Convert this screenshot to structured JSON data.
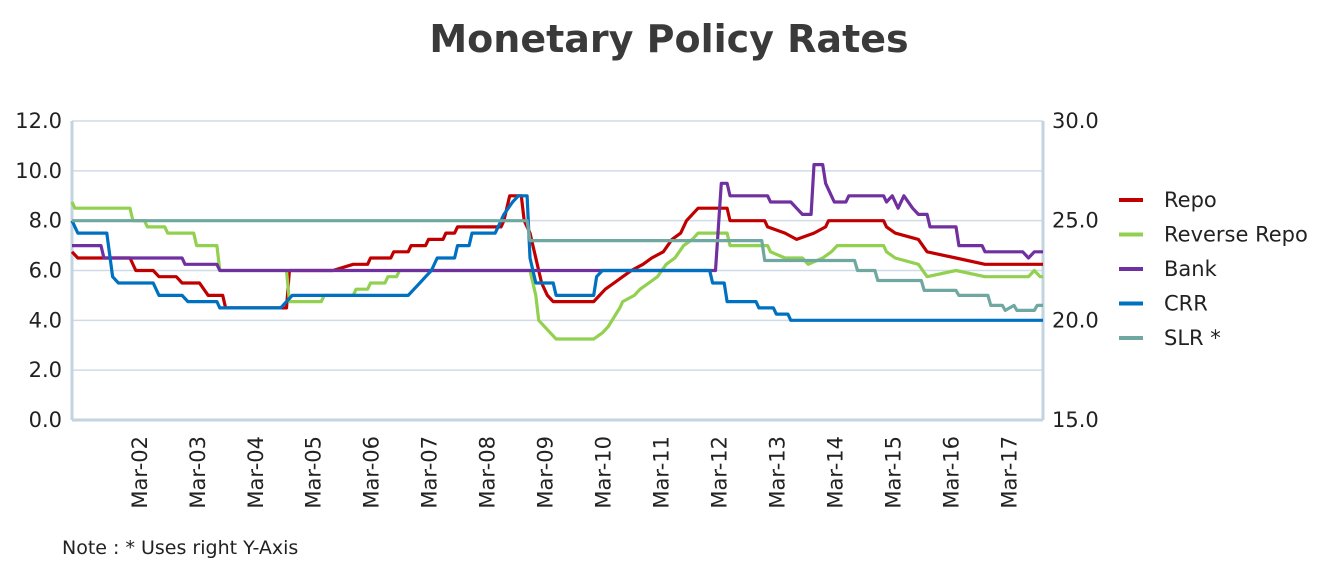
{
  "chart_data": {
    "type": "line",
    "title": "Monetary Policy Rates",
    "note": "Note : * Uses right Y-Axis",
    "x_range": [
      2001.0,
      2017.75
    ],
    "x_ticks": [
      {
        "label": "Mar-02",
        "x": 2002.17
      },
      {
        "label": "Mar-03",
        "x": 2003.17
      },
      {
        "label": "Mar-04",
        "x": 2004.17
      },
      {
        "label": "Mar-05",
        "x": 2005.17
      },
      {
        "label": "Mar-06",
        "x": 2006.17
      },
      {
        "label": "Mar-07",
        "x": 2007.17
      },
      {
        "label": "Mar-08",
        "x": 2008.17
      },
      {
        "label": "Mar-09",
        "x": 2009.17
      },
      {
        "label": "Mar-10",
        "x": 2010.17
      },
      {
        "label": "Mar-11",
        "x": 2011.17
      },
      {
        "label": "Mar-12",
        "x": 2012.17
      },
      {
        "label": "Mar-13",
        "x": 2013.17
      },
      {
        "label": "Mar-14",
        "x": 2014.17
      },
      {
        "label": "Mar-15",
        "x": 2015.17
      },
      {
        "label": "Mar-16",
        "x": 2016.17
      },
      {
        "label": "Mar-17",
        "x": 2017.17
      }
    ],
    "y_left": {
      "ylim": [
        0,
        12
      ],
      "ticks": [
        0,
        2,
        4,
        6,
        8,
        10,
        12
      ],
      "tick_labels": [
        "0.0",
        "2.0",
        "4.0",
        "6.0",
        "8.0",
        "10.0",
        "12.0"
      ]
    },
    "y_right": {
      "ylim": [
        15,
        30
      ],
      "ticks": [
        15,
        20,
        25,
        30
      ],
      "tick_labels": [
        "15.0",
        "20.0",
        "25.0",
        "30.0"
      ]
    },
    "legend_position": "right",
    "series": [
      {
        "name": "Repo",
        "color": "#c00000",
        "axis": "left",
        "points": [
          [
            2001.0,
            6.75
          ],
          [
            2001.1,
            6.5
          ],
          [
            2001.5,
            6.5
          ],
          [
            2002.0,
            6.5
          ],
          [
            2002.1,
            6.0
          ],
          [
            2002.4,
            6.0
          ],
          [
            2002.5,
            5.75
          ],
          [
            2002.8,
            5.75
          ],
          [
            2002.9,
            5.5
          ],
          [
            2003.2,
            5.5
          ],
          [
            2003.35,
            5.0
          ],
          [
            2003.6,
            5.0
          ],
          [
            2003.65,
            4.5
          ],
          [
            2004.7,
            4.5
          ],
          [
            2004.75,
            6.0
          ],
          [
            2005.5,
            6.0
          ],
          [
            2005.85,
            6.25
          ],
          [
            2006.1,
            6.25
          ],
          [
            2006.15,
            6.5
          ],
          [
            2006.5,
            6.5
          ],
          [
            2006.55,
            6.75
          ],
          [
            2006.8,
            6.75
          ],
          [
            2006.85,
            7.0
          ],
          [
            2007.1,
            7.0
          ],
          [
            2007.15,
            7.25
          ],
          [
            2007.4,
            7.25
          ],
          [
            2007.45,
            7.5
          ],
          [
            2007.6,
            7.5
          ],
          [
            2007.65,
            7.75
          ],
          [
            2008.4,
            7.75
          ],
          [
            2008.45,
            8.0
          ],
          [
            2008.5,
            8.5
          ],
          [
            2008.55,
            9.0
          ],
          [
            2008.75,
            9.0
          ],
          [
            2008.8,
            8.0
          ],
          [
            2008.9,
            7.5
          ],
          [
            2009.0,
            6.5
          ],
          [
            2009.1,
            5.5
          ],
          [
            2009.2,
            5.0
          ],
          [
            2009.3,
            4.75
          ],
          [
            2010.0,
            4.75
          ],
          [
            2010.1,
            5.0
          ],
          [
            2010.2,
            5.25
          ],
          [
            2010.35,
            5.5
          ],
          [
            2010.5,
            5.75
          ],
          [
            2010.65,
            6.0
          ],
          [
            2010.85,
            6.25
          ],
          [
            2011.0,
            6.5
          ],
          [
            2011.2,
            6.75
          ],
          [
            2011.35,
            7.25
          ],
          [
            2011.5,
            7.5
          ],
          [
            2011.6,
            8.0
          ],
          [
            2011.7,
            8.25
          ],
          [
            2011.8,
            8.5
          ],
          [
            2012.3,
            8.5
          ],
          [
            2012.35,
            8.0
          ],
          [
            2012.95,
            8.0
          ],
          [
            2013.0,
            7.75
          ],
          [
            2013.3,
            7.5
          ],
          [
            2013.5,
            7.25
          ],
          [
            2013.8,
            7.5
          ],
          [
            2014.0,
            7.75
          ],
          [
            2014.05,
            8.0
          ],
          [
            2015.0,
            8.0
          ],
          [
            2015.05,
            7.75
          ],
          [
            2015.2,
            7.5
          ],
          [
            2015.6,
            7.25
          ],
          [
            2015.75,
            6.75
          ],
          [
            2016.25,
            6.5
          ],
          [
            2016.75,
            6.25
          ],
          [
            2017.75,
            6.25
          ]
        ]
      },
      {
        "name": "Reverse Repo",
        "color": "#92d050",
        "axis": "left",
        "points": [
          [
            2001.0,
            8.75
          ],
          [
            2001.05,
            8.5
          ],
          [
            2002.0,
            8.5
          ],
          [
            2002.05,
            8.0
          ],
          [
            2002.25,
            8.0
          ],
          [
            2002.3,
            7.75
          ],
          [
            2002.6,
            7.75
          ],
          [
            2002.65,
            7.5
          ],
          [
            2003.1,
            7.5
          ],
          [
            2003.15,
            7.0
          ],
          [
            2003.5,
            7.0
          ],
          [
            2003.55,
            6.0
          ],
          [
            2004.7,
            6.0
          ],
          [
            2004.75,
            4.75
          ],
          [
            2005.3,
            4.75
          ],
          [
            2005.35,
            5.0
          ],
          [
            2005.85,
            5.0
          ],
          [
            2005.9,
            5.25
          ],
          [
            2006.1,
            5.25
          ],
          [
            2006.15,
            5.5
          ],
          [
            2006.4,
            5.5
          ],
          [
            2006.45,
            5.75
          ],
          [
            2006.6,
            5.75
          ],
          [
            2006.65,
            6.0
          ],
          [
            2008.6,
            6.0
          ],
          [
            2008.9,
            6.0
          ],
          [
            2009.0,
            5.0
          ],
          [
            2009.05,
            4.0
          ],
          [
            2009.25,
            3.5
          ],
          [
            2009.35,
            3.25
          ],
          [
            2010.0,
            3.25
          ],
          [
            2010.15,
            3.5
          ],
          [
            2010.25,
            3.75
          ],
          [
            2010.45,
            4.5
          ],
          [
            2010.5,
            4.75
          ],
          [
            2010.7,
            5.0
          ],
          [
            2010.8,
            5.25
          ],
          [
            2010.95,
            5.5
          ],
          [
            2011.1,
            5.75
          ],
          [
            2011.25,
            6.25
          ],
          [
            2011.4,
            6.5
          ],
          [
            2011.55,
            7.0
          ],
          [
            2011.7,
            7.25
          ],
          [
            2011.8,
            7.5
          ],
          [
            2012.3,
            7.5
          ],
          [
            2012.35,
            7.0
          ],
          [
            2013.0,
            7.0
          ],
          [
            2013.05,
            6.75
          ],
          [
            2013.3,
            6.5
          ],
          [
            2013.6,
            6.5
          ],
          [
            2013.7,
            6.25
          ],
          [
            2013.95,
            6.5
          ],
          [
            2014.1,
            6.75
          ],
          [
            2014.2,
            7.0
          ],
          [
            2015.0,
            7.0
          ],
          [
            2015.05,
            6.75
          ],
          [
            2015.2,
            6.5
          ],
          [
            2015.6,
            6.25
          ],
          [
            2015.75,
            5.75
          ],
          [
            2016.25,
            6.0
          ],
          [
            2016.75,
            5.75
          ],
          [
            2017.5,
            5.75
          ],
          [
            2017.6,
            6.0
          ],
          [
            2017.7,
            5.75
          ],
          [
            2017.75,
            5.75
          ]
        ]
      },
      {
        "name": "Bank",
        "color": "#7030a0",
        "axis": "left",
        "points": [
          [
            2001.0,
            7.0
          ],
          [
            2001.5,
            7.0
          ],
          [
            2001.55,
            6.5
          ],
          [
            2002.9,
            6.5
          ],
          [
            2002.95,
            6.25
          ],
          [
            2003.5,
            6.25
          ],
          [
            2003.55,
            6.0
          ],
          [
            2012.1,
            6.0
          ],
          [
            2012.2,
            9.5
          ],
          [
            2012.3,
            9.5
          ],
          [
            2012.35,
            9.0
          ],
          [
            2013.0,
            9.0
          ],
          [
            2013.05,
            8.75
          ],
          [
            2013.4,
            8.75
          ],
          [
            2013.5,
            8.5
          ],
          [
            2013.6,
            8.25
          ],
          [
            2013.75,
            8.25
          ],
          [
            2013.8,
            10.25
          ],
          [
            2013.95,
            10.25
          ],
          [
            2014.0,
            9.5
          ],
          [
            2014.1,
            9.0
          ],
          [
            2014.15,
            8.75
          ],
          [
            2014.35,
            8.75
          ],
          [
            2014.4,
            9.0
          ],
          [
            2015.0,
            9.0
          ],
          [
            2015.05,
            8.75
          ],
          [
            2015.15,
            9.0
          ],
          [
            2015.25,
            8.5
          ],
          [
            2015.35,
            9.0
          ],
          [
            2015.5,
            8.5
          ],
          [
            2015.6,
            8.25
          ],
          [
            2015.75,
            8.25
          ],
          [
            2015.8,
            7.75
          ],
          [
            2016.25,
            7.75
          ],
          [
            2016.3,
            7.0
          ],
          [
            2016.7,
            7.0
          ],
          [
            2016.75,
            6.75
          ],
          [
            2017.4,
            6.75
          ],
          [
            2017.5,
            6.5
          ],
          [
            2017.6,
            6.75
          ],
          [
            2017.75,
            6.75
          ]
        ]
      },
      {
        "name": "CRR",
        "color": "#0070c0",
        "axis": "left",
        "points": [
          [
            2001.0,
            8.0
          ],
          [
            2001.1,
            7.5
          ],
          [
            2001.6,
            7.5
          ],
          [
            2001.7,
            5.75
          ],
          [
            2001.8,
            5.5
          ],
          [
            2002.4,
            5.5
          ],
          [
            2002.5,
            5.0
          ],
          [
            2002.9,
            5.0
          ],
          [
            2003.0,
            4.75
          ],
          [
            2003.5,
            4.75
          ],
          [
            2003.55,
            4.5
          ],
          [
            2004.6,
            4.5
          ],
          [
            2004.7,
            4.75
          ],
          [
            2004.8,
            5.0
          ],
          [
            2006.8,
            5.0
          ],
          [
            2006.9,
            5.25
          ],
          [
            2007.0,
            5.5
          ],
          [
            2007.1,
            5.75
          ],
          [
            2007.2,
            6.0
          ],
          [
            2007.3,
            6.5
          ],
          [
            2007.6,
            6.5
          ],
          [
            2007.65,
            7.0
          ],
          [
            2007.85,
            7.0
          ],
          [
            2007.9,
            7.5
          ],
          [
            2008.3,
            7.5
          ],
          [
            2008.35,
            7.75
          ],
          [
            2008.45,
            8.25
          ],
          [
            2008.6,
            8.75
          ],
          [
            2008.7,
            9.0
          ],
          [
            2008.85,
            9.0
          ],
          [
            2008.9,
            6.5
          ],
          [
            2009.0,
            5.5
          ],
          [
            2009.3,
            5.5
          ],
          [
            2009.35,
            5.0
          ],
          [
            2010.0,
            5.0
          ],
          [
            2010.05,
            5.75
          ],
          [
            2010.15,
            6.0
          ],
          [
            2012.0,
            6.0
          ],
          [
            2012.05,
            5.5
          ],
          [
            2012.25,
            5.5
          ],
          [
            2012.3,
            4.75
          ],
          [
            2012.8,
            4.75
          ],
          [
            2012.85,
            4.5
          ],
          [
            2013.1,
            4.5
          ],
          [
            2013.15,
            4.25
          ],
          [
            2013.35,
            4.25
          ],
          [
            2013.4,
            4.0
          ],
          [
            2017.75,
            4.0
          ]
        ]
      },
      {
        "name": "SLR *",
        "color": "#6fa8a0",
        "axis": "right",
        "points": [
          [
            2001.0,
            25.0
          ],
          [
            2008.85,
            25.0
          ],
          [
            2008.9,
            24.0
          ],
          [
            2012.9,
            24.0
          ],
          [
            2012.95,
            23.0
          ],
          [
            2014.0,
            23.0
          ],
          [
            2014.05,
            23.0
          ],
          [
            2014.5,
            23.0
          ],
          [
            2014.55,
            22.5
          ],
          [
            2014.85,
            22.5
          ],
          [
            2014.9,
            22.0
          ],
          [
            2015.65,
            22.0
          ],
          [
            2015.7,
            21.5
          ],
          [
            2016.25,
            21.5
          ],
          [
            2016.3,
            21.25
          ],
          [
            2016.8,
            21.25
          ],
          [
            2016.85,
            20.75
          ],
          [
            2017.05,
            20.75
          ],
          [
            2017.1,
            20.5
          ],
          [
            2017.25,
            20.75
          ],
          [
            2017.3,
            20.5
          ],
          [
            2017.6,
            20.5
          ],
          [
            2017.65,
            20.75
          ],
          [
            2017.75,
            20.75
          ]
        ]
      }
    ]
  }
}
